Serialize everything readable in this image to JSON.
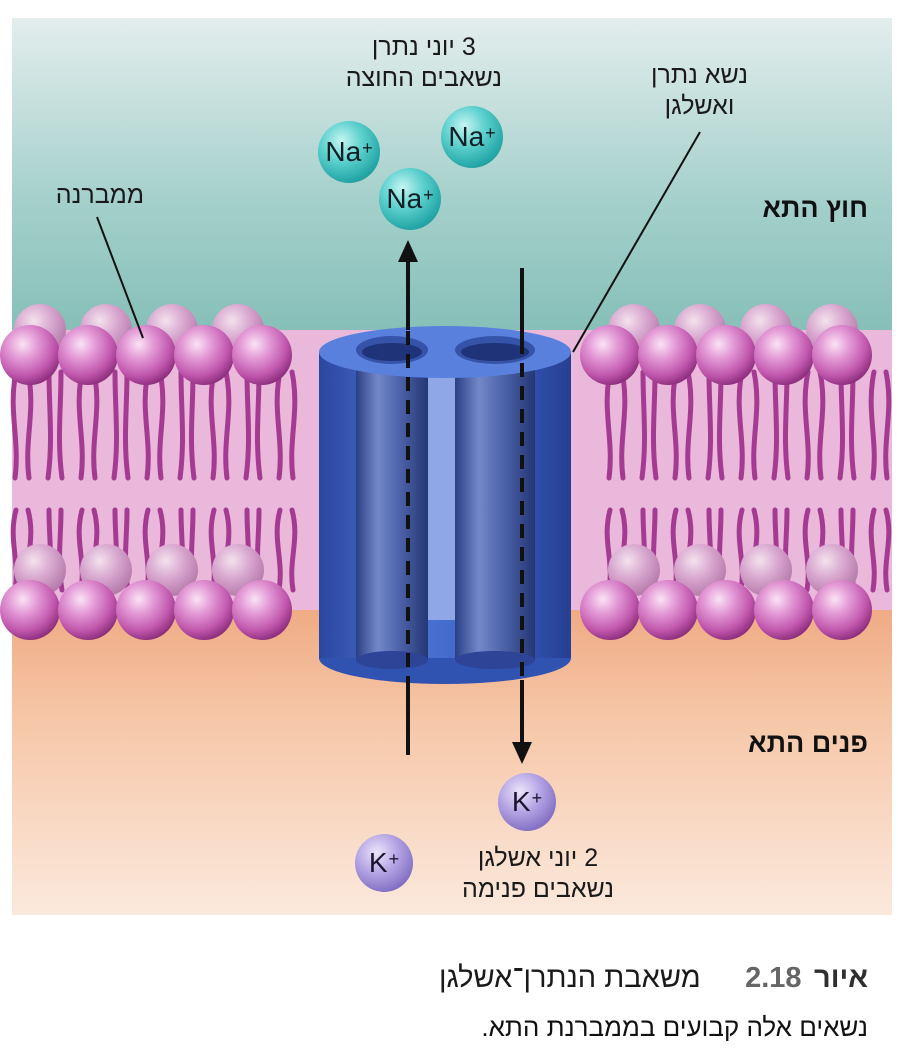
{
  "labels": {
    "na_out": [
      "3 יוני נתרן",
      "נשאבים החוצה"
    ],
    "carrier": [
      "נשא נתרן",
      "ואשלגן"
    ],
    "membrane": "ממברנה",
    "outside": "חוץ התא",
    "inside": "פנים התא",
    "k_in": [
      "2 יוני אשלגן",
      "נשאבים פנימה"
    ]
  },
  "ions": {
    "na_symbol": "Na",
    "k_symbol": "K",
    "charge": "+"
  },
  "caption": {
    "label": "איור",
    "number": "2.18",
    "title": "משאבת הנתרן־אשלגן",
    "text": "נשאים אלה קבועים בממברנת התא."
  },
  "colors": {
    "outside_fluid": "#8cc3bd",
    "inside_fluid": "#f3c4a4",
    "phospholipid_head": "#c65ab0",
    "protein": "#3a5fc0",
    "sodium_ion": "#3fbfbf",
    "potassium_ion": "#9583d1"
  }
}
